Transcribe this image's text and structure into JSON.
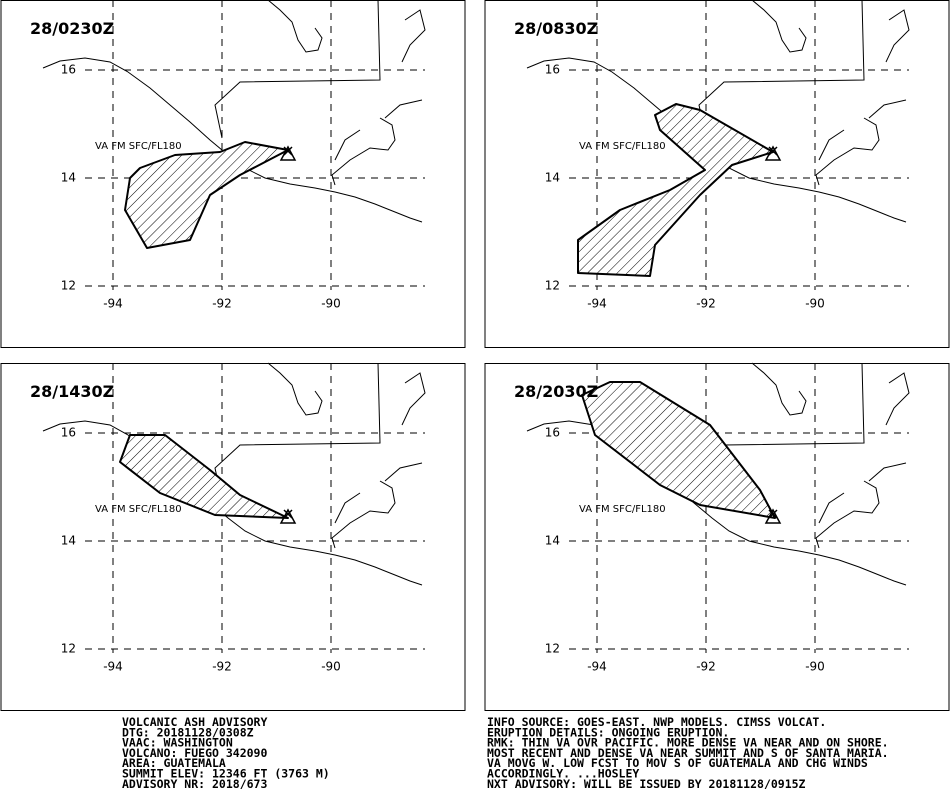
{
  "panels": [
    {
      "time": "28/0230Z",
      "label": "VA FM SFC/FL180"
    },
    {
      "time": "28/0830Z",
      "label": "VA FM SFC/FL180"
    },
    {
      "time": "28/1430Z",
      "label": "VA FM SFC/FL180"
    },
    {
      "time": "28/2030Z",
      "label": "VA FM SFC/FL180"
    }
  ],
  "lat_ticks": [
    16,
    14,
    12
  ],
  "lon_ticks": [
    -94,
    -92,
    -90
  ],
  "footer_left": [
    "VOLCANIC ASH ADVISORY",
    "DTG: 20181128/0308Z",
    "VAAC: WASHINGTON",
    "VOLCANO: FUEGO 342090",
    "AREA: GUATEMALA",
    "SUMMIT ELEV: 12346 FT (3763 M)",
    "ADVISORY NR: 2018/673"
  ],
  "footer_right": [
    "INFO SOURCE: GOES-EAST. NWP MODELS. CIMSS VOLCAT.",
    "ERUPTION DETAILS: ONGOING ERUPTION.",
    "RMK: THIN VA OVR PACIFIC. MORE DENSE VA NEAR AND ON SHORE.",
    "MOST RECENT AND DENSE VA NEAR SUMMIT AND S OF SANTA MARIA.",
    "VA MOVG W. LOW FCST TO MOV S OF GUATEMALA AND CHG WINDS",
    "ACCORDINGLY. ...HOSLEY",
    "NXT ADVISORY: WILL BE ISSUED BY 20181128/0915Z"
  ]
}
